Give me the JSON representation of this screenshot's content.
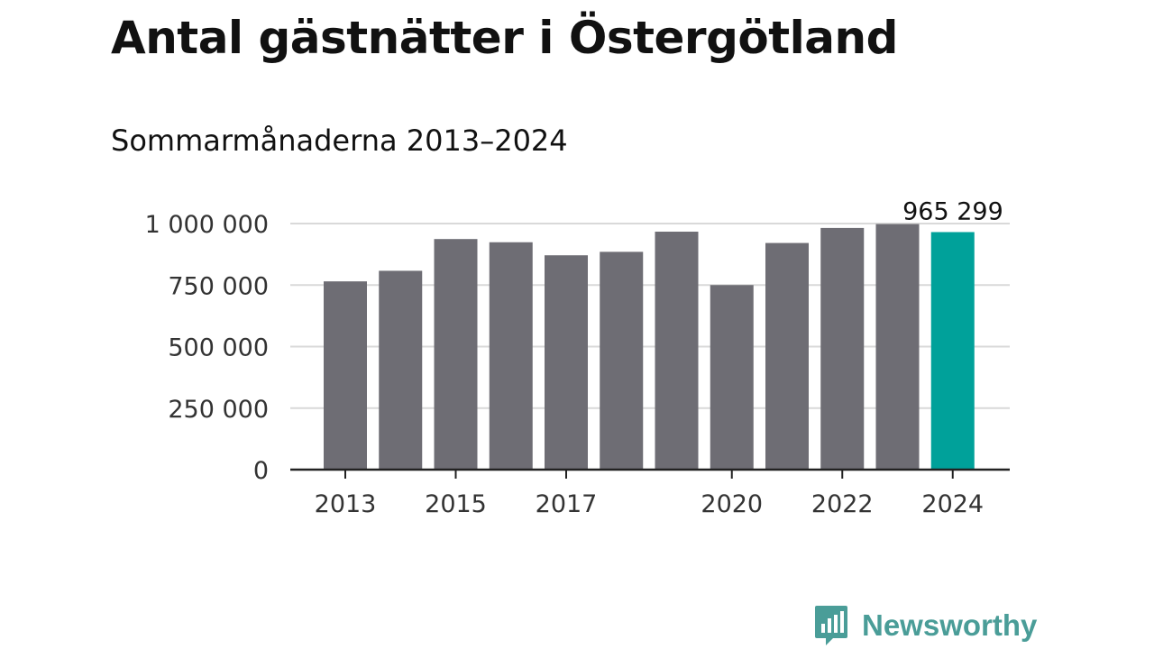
{
  "header": {
    "title": "Antal gästnätter i Östergötland",
    "subtitle": "Sommarmånaderna 2013–2024"
  },
  "colors": {
    "bar": "#6e6d74",
    "highlight": "#00a19a",
    "grid": "#d9d9d9",
    "axis": "#222222",
    "logo": "#4a9d98"
  },
  "chart_data": {
    "type": "bar",
    "title": "Antal gästnätter i Östergötland",
    "subtitle": "Sommarmånaderna 2013–2024",
    "xlabel": "",
    "ylabel": "",
    "categories": [
      "2013",
      "2014",
      "2015",
      "2016",
      "2017",
      "2018",
      "2019",
      "2020",
      "2021",
      "2022",
      "2023",
      "2024"
    ],
    "values": [
      765000,
      808000,
      937000,
      924000,
      871000,
      885000,
      967000,
      750000,
      921000,
      982000,
      998000,
      965299
    ],
    "ylim": [
      0,
      1000000
    ],
    "yticks": [
      0,
      250000,
      500000,
      750000,
      1000000
    ],
    "ytick_labels": [
      "0",
      "250 000",
      "500 000",
      "750 000",
      "1 000 000"
    ],
    "xtick_categories": [
      "2013",
      "2015",
      "2017",
      "2020",
      "2022",
      "2024"
    ],
    "highlight_index": 11,
    "annotation": {
      "category": "2024",
      "label": "965 299"
    },
    "grid": true,
    "legend": "none"
  },
  "branding": {
    "logo_text": "Newsworthy",
    "logo_icon": "newsworthy-chart-bubble-icon"
  }
}
